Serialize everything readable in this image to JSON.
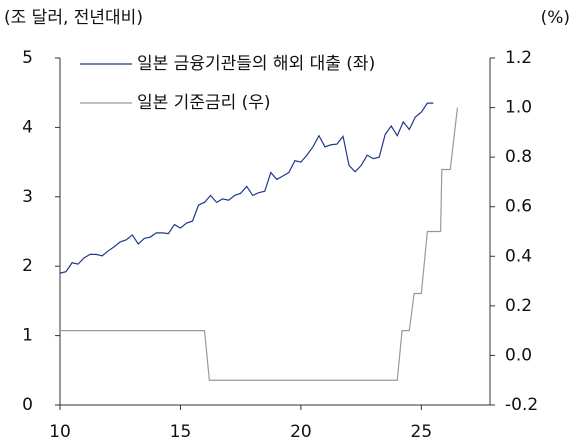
{
  "chart_data": {
    "type": "line",
    "y_label": "(조 달러, 전년대비)",
    "y2_label": "(%)",
    "xlim": [
      10,
      27.85
    ],
    "xticks": [
      10,
      15,
      20,
      25
    ],
    "ylim": [
      0,
      5
    ],
    "yticks": [
      0,
      1,
      2,
      3,
      4,
      5
    ],
    "y2lim": [
      -0.2,
      1.2
    ],
    "y2ticks": [
      -0.2,
      {
        "value": 0,
        "label": "0.0"
      },
      0.2,
      0.4,
      0.6,
      0.8,
      {
        "value": 1,
        "label": "1.0"
      },
      1.2
    ],
    "legend": "top-left",
    "series": [
      {
        "name": "일본 금융기관들의 해외 대출 (좌)",
        "color": "#1f3a8a",
        "axis": "y",
        "x": [
          10,
          10.25,
          10.5,
          10.75,
          11,
          11.25,
          11.5,
          11.75,
          12,
          12.25,
          12.5,
          12.75,
          13,
          13.25,
          13.5,
          13.75,
          14,
          14.25,
          14.5,
          14.75,
          15,
          15.25,
          15.5,
          15.75,
          16,
          16.25,
          16.5,
          16.75,
          17,
          17.25,
          17.5,
          17.75,
          18,
          18.25,
          18.5,
          18.75,
          19,
          19.25,
          19.5,
          19.75,
          20,
          20.25,
          20.5,
          20.75,
          21,
          21.25,
          21.5,
          21.75,
          22,
          22.25,
          22.5,
          22.75,
          23,
          23.25,
          23.5,
          23.75,
          24,
          24.25,
          24.5,
          24.75,
          25,
          25.25,
          25.5
        ],
        "values": [
          1.9,
          1.92,
          2.05,
          2.03,
          2.12,
          2.17,
          2.17,
          2.15,
          2.22,
          2.28,
          2.35,
          2.38,
          2.45,
          2.32,
          2.4,
          2.42,
          2.48,
          2.48,
          2.47,
          2.6,
          2.55,
          2.62,
          2.65,
          2.88,
          2.92,
          3.02,
          2.92,
          2.97,
          2.95,
          3.02,
          3.05,
          3.15,
          3.02,
          3.06,
          3.08,
          3.35,
          3.25,
          3.3,
          3.35,
          3.52,
          3.5,
          3.6,
          3.72,
          3.88,
          3.72,
          3.75,
          3.76,
          3.87,
          3.45,
          3.36,
          3.45,
          3.6,
          3.55,
          3.57,
          3.9,
          4.02,
          3.88,
          4.08,
          3.97,
          4.15,
          4.22,
          4.35,
          4.35
        ]
      },
      {
        "name": "일본 기준금리 (우)",
        "color": "#999999",
        "axis": "y2",
        "x": [
          10,
          16.0,
          16.2,
          24.0,
          24.2,
          24.5,
          24.7,
          25.0,
          25.25,
          25.8,
          25.85,
          26.2,
          26.5
        ],
        "values": [
          0.1,
          0.1,
          -0.1,
          -0.1,
          0.1,
          0.1,
          0.25,
          0.25,
          0.5,
          0.5,
          0.75,
          0.75,
          1.0
        ]
      }
    ]
  }
}
